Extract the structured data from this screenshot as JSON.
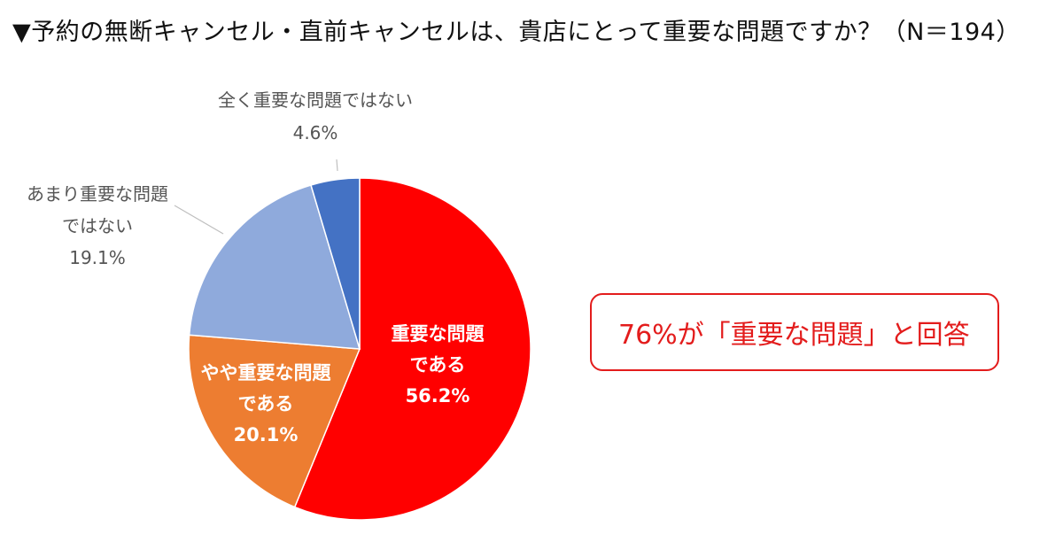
{
  "header": {
    "title": "▼予約の無断キャンセル・直前キャンセルは、貴店にとって重要な問題ですか？（N＝194）"
  },
  "callout": {
    "text": "76%が「重要な問題」と回答",
    "color": "#e31c1c"
  },
  "chart_data": {
    "type": "pie",
    "title": "予約の無断キャンセル・直前キャンセルは、貴店にとって重要な問題ですか？（N＝194）",
    "start": "top, clockwise",
    "slices": [
      {
        "lines": [
          "重要な問題",
          "である"
        ],
        "value": 56.2,
        "value_label": "56.2%",
        "color": "#ff0000",
        "label_position": "inside"
      },
      {
        "lines": [
          "やや重要な問題",
          "である"
        ],
        "value": 20.1,
        "value_label": "20.1%",
        "color": "#ed7d31",
        "label_position": "inside"
      },
      {
        "lines": [
          "あまり重要な問題",
          "ではない"
        ],
        "value": 19.1,
        "value_label": "19.1%",
        "color": "#8faadc",
        "label_position": "outside"
      },
      {
        "lines": [
          "全く重要な問題ではない"
        ],
        "value": 4.6,
        "value_label": "4.6%",
        "color": "#4472c4",
        "label_position": "outside"
      }
    ]
  }
}
